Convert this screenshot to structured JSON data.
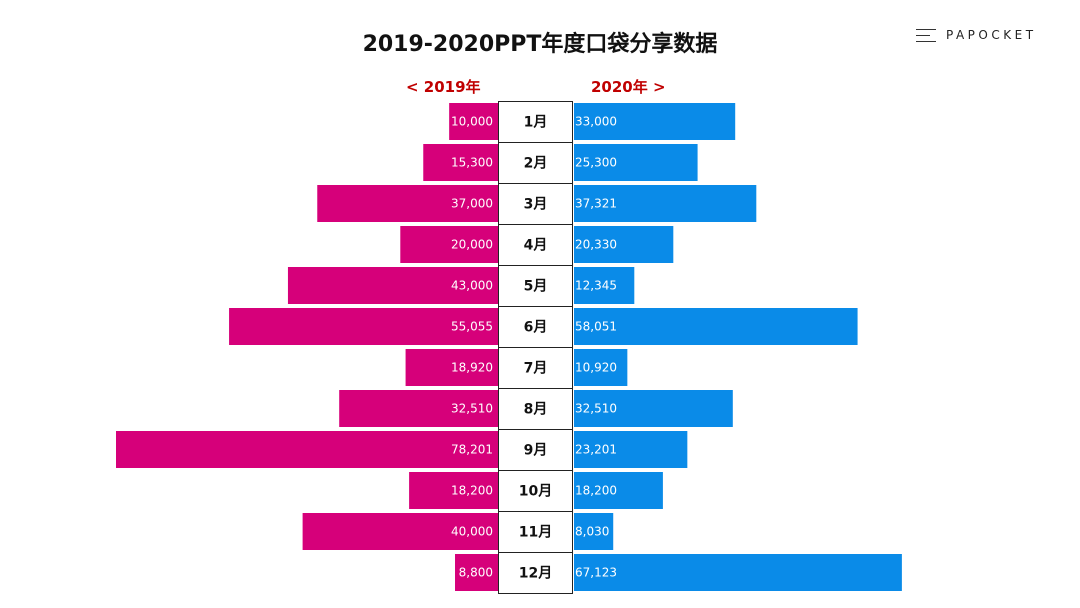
{
  "title": "2019-2020PPT年度口袋分享数据",
  "brand": {
    "name": "PAPOCKET",
    "icon": "menu-icon"
  },
  "legend": {
    "left": "< 2019年",
    "right": "2020年 >"
  },
  "colors": {
    "series_2019": "#d6007a",
    "series_2020": "#0a8be8",
    "legend_text": "#c00000"
  },
  "chart_data": {
    "type": "bar",
    "orientation": "horizontal-butterfly",
    "categories": [
      "1月",
      "2月",
      "3月",
      "4月",
      "5月",
      "6月",
      "7月",
      "8月",
      "9月",
      "10月",
      "11月",
      "12月"
    ],
    "series": [
      {
        "name": "2019年",
        "values": [
          10000,
          15300,
          37000,
          20000,
          43000,
          55055,
          18920,
          32510,
          78201,
          18200,
          40000,
          8800
        ],
        "labels": [
          "10,000",
          "15,300",
          "37,000",
          "20,000",
          "43,000",
          "55,055",
          "18,920",
          "32,510",
          "78,201",
          "18,200",
          "40,000",
          "8,800"
        ]
      },
      {
        "name": "2020年",
        "values": [
          33000,
          25300,
          37321,
          20330,
          12345,
          58051,
          10920,
          32510,
          23201,
          18200,
          8030,
          67123
        ],
        "labels": [
          "33,000",
          "25,300",
          "37,321",
          "20,330",
          "12,345",
          "58,051",
          "10,920",
          "32,510",
          "23,201",
          "18,200",
          "8,030",
          "67,123"
        ]
      }
    ],
    "title": "2019-2020PPT年度口袋分享数据",
    "xlabel": "",
    "ylabel": "",
    "xlim": [
      0,
      78201
    ],
    "grid": false,
    "legend_position": "top-center"
  }
}
